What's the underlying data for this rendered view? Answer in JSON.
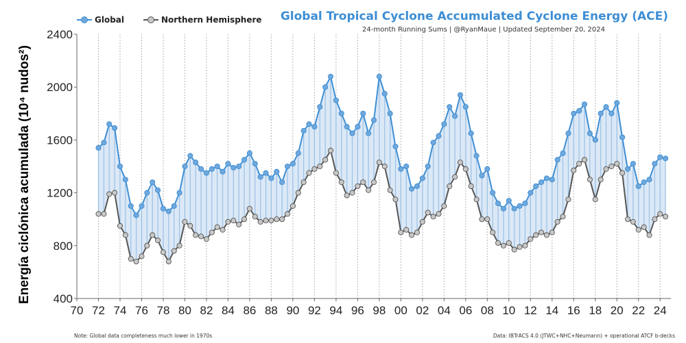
{
  "legend": {
    "global_label": "Global",
    "nh_label": "Northern Hemisphere"
  },
  "header": {
    "title": "Global Tropical Cyclone Accumulated Cyclone Energy (ACE)",
    "subtitle": "24-month Running Sums | @RyanMaue | Updated September 20, 2024"
  },
  "axis": {
    "ylabel": "Energía ciclónica acumulada (10⁴ nudos²)"
  },
  "footer": {
    "note_left": "Note:  Global data completeness much lower in 1970s",
    "note_right": "Data: IBTrACS 4.0 (JTWC+NHC+Neumann) + operational ATCF b-decks"
  },
  "colors": {
    "global_line": "#3d8ed4",
    "global_dot": "#6fa8dc",
    "nh_line": "#555555",
    "nh_dot": "#c8c8c8",
    "fill": "#cfe0f3",
    "title": "#3d8ed4"
  },
  "chart_data": {
    "type": "line",
    "x_unit": "year",
    "xlim": [
      1970,
      2025
    ],
    "ylim": [
      400,
      2400
    ],
    "yticks": [
      400,
      800,
      1200,
      1600,
      2000,
      2400
    ],
    "xticks": [
      "70",
      "72",
      "74",
      "76",
      "78",
      "80",
      "82",
      "84",
      "86",
      "88",
      "90",
      "92",
      "94",
      "96",
      "98",
      "00",
      "02",
      "04",
      "06",
      "08",
      "10",
      "12",
      "14",
      "16",
      "18",
      "20",
      "22",
      "24"
    ],
    "grid": "vertical dotted",
    "legend_position": "top-left",
    "series": [
      {
        "name": "Global",
        "x": [
          1972.0,
          1972.5,
          1973.0,
          1973.5,
          1974.0,
          1974.5,
          1975.0,
          1975.5,
          1976.0,
          1976.5,
          1977.0,
          1977.5,
          1978.0,
          1978.5,
          1979.0,
          1979.5,
          1980.0,
          1980.5,
          1981.0,
          1981.5,
          1982.0,
          1982.5,
          1983.0,
          1983.5,
          1984.0,
          1984.5,
          1985.0,
          1985.5,
          1986.0,
          1986.5,
          1987.0,
          1987.5,
          1988.0,
          1988.5,
          1989.0,
          1989.5,
          1990.0,
          1990.5,
          1991.0,
          1991.5,
          1992.0,
          1992.5,
          1993.0,
          1993.5,
          1994.0,
          1994.5,
          1995.0,
          1995.5,
          1996.0,
          1996.5,
          1997.0,
          1997.5,
          1998.0,
          1998.5,
          1999.0,
          1999.5,
          2000.0,
          2000.5,
          2001.0,
          2001.5,
          2002.0,
          2002.5,
          2003.0,
          2003.5,
          2004.0,
          2004.5,
          2005.0,
          2005.5,
          2006.0,
          2006.5,
          2007.0,
          2007.5,
          2008.0,
          2008.5,
          2009.0,
          2009.5,
          2010.0,
          2010.5,
          2011.0,
          2011.5,
          2012.0,
          2012.5,
          2013.0,
          2013.5,
          2014.0,
          2014.5,
          2015.0,
          2015.5,
          2016.0,
          2016.5,
          2017.0,
          2017.5,
          2018.0,
          2018.5,
          2019.0,
          2019.5,
          2020.0,
          2020.5,
          2021.0,
          2021.5,
          2022.0,
          2022.5,
          2023.0,
          2023.5,
          2024.0,
          2024.5
        ],
        "y": [
          1540,
          1580,
          1720,
          1690,
          1400,
          1300,
          1100,
          1030,
          1100,
          1200,
          1280,
          1220,
          1080,
          1060,
          1100,
          1200,
          1400,
          1480,
          1430,
          1380,
          1350,
          1380,
          1400,
          1360,
          1420,
          1390,
          1400,
          1450,
          1500,
          1420,
          1320,
          1350,
          1310,
          1360,
          1280,
          1400,
          1420,
          1500,
          1670,
          1720,
          1700,
          1850,
          2000,
          2080,
          1900,
          1800,
          1700,
          1650,
          1700,
          1800,
          1650,
          1750,
          2080,
          1950,
          1800,
          1550,
          1380,
          1400,
          1230,
          1250,
          1310,
          1400,
          1580,
          1630,
          1720,
          1850,
          1780,
          1940,
          1850,
          1650,
          1480,
          1330,
          1380,
          1200,
          1120,
          1080,
          1140,
          1080,
          1100,
          1120,
          1200,
          1250,
          1280,
          1310,
          1300,
          1450,
          1500,
          1650,
          1800,
          1820,
          1870,
          1650,
          1600,
          1800,
          1850,
          1800,
          1880,
          1620,
          1380,
          1420,
          1250,
          1280,
          1300,
          1420,
          1470,
          1460
        ]
      },
      {
        "name": "Northern Hemisphere",
        "x": [
          1972.0,
          1972.5,
          1973.0,
          1973.5,
          1974.0,
          1974.5,
          1975.0,
          1975.5,
          1976.0,
          1976.5,
          1977.0,
          1977.5,
          1978.0,
          1978.5,
          1979.0,
          1979.5,
          1980.0,
          1980.5,
          1981.0,
          1981.5,
          1982.0,
          1982.5,
          1983.0,
          1983.5,
          1984.0,
          1984.5,
          1985.0,
          1985.5,
          1986.0,
          1986.5,
          1987.0,
          1987.5,
          1988.0,
          1988.5,
          1989.0,
          1989.5,
          1990.0,
          1990.5,
          1991.0,
          1991.5,
          1992.0,
          1992.5,
          1993.0,
          1993.5,
          1994.0,
          1994.5,
          1995.0,
          1995.5,
          1996.0,
          1996.5,
          1997.0,
          1997.5,
          1998.0,
          1998.5,
          1999.0,
          1999.5,
          2000.0,
          2000.5,
          2001.0,
          2001.5,
          2002.0,
          2002.5,
          2003.0,
          2003.5,
          2004.0,
          2004.5,
          2005.0,
          2005.5,
          2006.0,
          2006.5,
          2007.0,
          2007.5,
          2008.0,
          2008.5,
          2009.0,
          2009.5,
          2010.0,
          2010.5,
          2011.0,
          2011.5,
          2012.0,
          2012.5,
          2013.0,
          2013.5,
          2014.0,
          2014.5,
          2015.0,
          2015.5,
          2016.0,
          2016.5,
          2017.0,
          2017.5,
          2018.0,
          2018.5,
          2019.0,
          2019.5,
          2020.0,
          2020.5,
          2021.0,
          2021.5,
          2022.0,
          2022.5,
          2023.0,
          2023.5,
          2024.0,
          2024.5
        ],
        "y": [
          1040,
          1040,
          1190,
          1200,
          950,
          880,
          700,
          680,
          720,
          800,
          880,
          840,
          750,
          680,
          760,
          800,
          980,
          950,
          880,
          870,
          850,
          900,
          940,
          920,
          980,
          990,
          960,
          1000,
          1080,
          1020,
          980,
          990,
          990,
          1000,
          1000,
          1040,
          1100,
          1200,
          1280,
          1350,
          1380,
          1400,
          1450,
          1520,
          1350,
          1280,
          1180,
          1200,
          1250,
          1280,
          1220,
          1280,
          1430,
          1400,
          1220,
          1150,
          900,
          920,
          880,
          900,
          980,
          1050,
          1020,
          1040,
          1100,
          1250,
          1320,
          1430,
          1380,
          1250,
          1150,
          1000,
          1000,
          900,
          820,
          800,
          820,
          770,
          790,
          800,
          850,
          880,
          900,
          880,
          900,
          980,
          1020,
          1150,
          1370,
          1420,
          1450,
          1300,
          1150,
          1300,
          1380,
          1400,
          1420,
          1350,
          1000,
          980,
          920,
          940,
          880,
          1000,
          1040,
          1020
        ]
      }
    ]
  }
}
